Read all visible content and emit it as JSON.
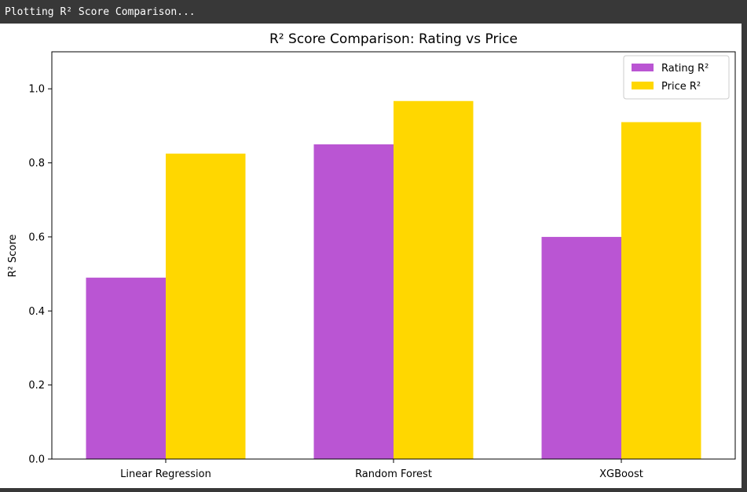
{
  "output": {
    "stdout": "Plotting R² Score Comparison..."
  },
  "chart_data": {
    "type": "bar",
    "title": "R² Score Comparison: Rating vs Price",
    "xlabel": "",
    "ylabel": "R² Score",
    "ylim": [
      0,
      1.1
    ],
    "yticks": [
      0.0,
      0.2,
      0.4,
      0.6,
      0.8,
      1.0
    ],
    "ytick_labels": [
      "0.0",
      "0.2",
      "0.4",
      "0.6",
      "0.8",
      "1.0"
    ],
    "categories": [
      "Linear Regression",
      "Random Forest",
      "XGBoost"
    ],
    "series": [
      {
        "name": "Rating R²",
        "values": [
          0.49,
          0.85,
          0.6
        ],
        "color": "#ba55d3"
      },
      {
        "name": "Price R²",
        "values": [
          0.825,
          0.967,
          0.91
        ],
        "color": "#ffd700"
      }
    ],
    "legend_position": "top-right",
    "grid": false
  }
}
